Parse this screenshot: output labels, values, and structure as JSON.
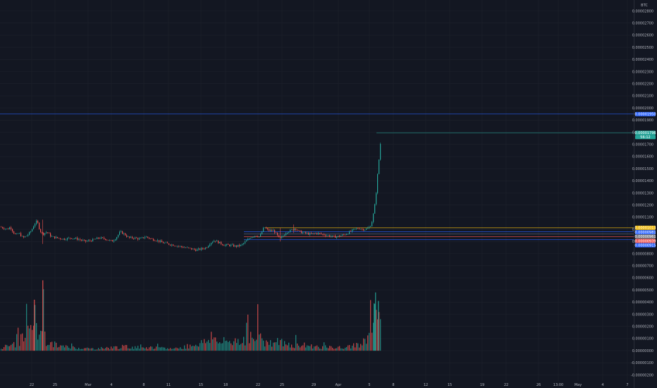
{
  "quote_currency": "BTC",
  "chart_data": {
    "type": "candlestick",
    "quote": "BTC",
    "y_ticks": [
      "0.00002800",
      "0.00002700",
      "0.00002600",
      "0.00002500",
      "0.00002400",
      "0.00002300",
      "0.00002200",
      "0.00002100",
      "0.00002000",
      "0.00001900",
      "0.00001800",
      "0.00001700",
      "0.00001600",
      "0.00001500",
      "0.00001400",
      "0.00001300",
      "0.00001200",
      "0.00001100",
      "0.00001000",
      "0.00000900",
      "0.00000800",
      "0.00000700",
      "0.00000600",
      "0.00000500",
      "0.00000400",
      "0.00000300",
      "0.00000200",
      "0.00000100",
      "0.00000000",
      "-0.00000100",
      "-0.00000200"
    ],
    "x_ticks": [
      "22",
      "25",
      "Mar",
      "4",
      "8",
      "11",
      "15",
      "18",
      "22",
      "25",
      "29",
      "Apr",
      "5",
      "8",
      "12",
      "15",
      "19",
      "22",
      "26",
      "13:00",
      "May",
      "4",
      "7"
    ],
    "price_ylim": [
      8e-06,
      2.8e-05
    ],
    "price_path": [
      [
        0,
        1.02e-05
      ],
      [
        5,
        1.01e-05
      ],
      [
        10,
        1e-05
      ],
      [
        14,
        1.02e-05
      ],
      [
        18,
        9.8e-06
      ],
      [
        22,
        9.5e-06
      ],
      [
        26,
        9.7e-06
      ],
      [
        32,
        9.3e-06
      ],
      [
        38,
        9.5e-06
      ],
      [
        44,
        9.9e-06
      ],
      [
        48,
        1.04e-05
      ],
      [
        52,
        1.07e-05
      ],
      [
        56,
        9.9e-06
      ],
      [
        60,
        9.6e-06
      ],
      [
        66,
        9.8e-06
      ],
      [
        72,
        9.4e-06
      ],
      [
        80,
        9.3e-06
      ],
      [
        90,
        9.2e-06
      ],
      [
        100,
        9.3e-06
      ],
      [
        110,
        9.2e-06
      ],
      [
        120,
        9e-06
      ],
      [
        130,
        9.1e-06
      ],
      [
        140,
        9.3e-06
      ],
      [
        150,
        9.2e-06
      ],
      [
        158,
        9e-06
      ],
      [
        164,
        9.3e-06
      ],
      [
        170,
        9.8e-06
      ],
      [
        176,
        9.6e-06
      ],
      [
        182,
        9.3e-06
      ],
      [
        190,
        9.3e-06
      ],
      [
        198,
        9.2e-06
      ],
      [
        206,
        9.4e-06
      ],
      [
        214,
        9.2e-06
      ],
      [
        222,
        9.1e-06
      ],
      [
        230,
        8.9e-06
      ],
      [
        238,
        8.8e-06
      ],
      [
        246,
        8.7e-06
      ],
      [
        254,
        8.6e-06
      ],
      [
        262,
        8.5e-06
      ],
      [
        270,
        8.4e-06
      ],
      [
        278,
        8.3e-06
      ],
      [
        286,
        8.4e-06
      ],
      [
        292,
        8.5e-06
      ],
      [
        298,
        8.9e-06
      ],
      [
        304,
        9.1e-06
      ],
      [
        310,
        8.9e-06
      ],
      [
        318,
        8.7e-06
      ],
      [
        326,
        8.7e-06
      ],
      [
        334,
        8.6e-06
      ],
      [
        342,
        8.7e-06
      ],
      [
        350,
        9.1e-06
      ],
      [
        356,
        9.4e-06
      ],
      [
        362,
        9.5e-06
      ],
      [
        368,
        9.4e-06
      ],
      [
        374,
        1.02e-05
      ],
      [
        380,
        9.9e-06
      ],
      [
        388,
        9.9e-06
      ],
      [
        396,
        9.2e-06
      ],
      [
        400,
        9.4e-06
      ],
      [
        406,
        9.8e-06
      ],
      [
        412,
        9.9e-06
      ],
      [
        418,
        1.01e-05
      ],
      [
        424,
        9.8e-06
      ],
      [
        432,
        9.7e-06
      ],
      [
        440,
        9.6e-06
      ],
      [
        448,
        9.7e-06
      ],
      [
        456,
        9.6e-06
      ],
      [
        464,
        9.5e-06
      ],
      [
        472,
        9.4e-06
      ],
      [
        478,
        9.4e-06
      ],
      [
        484,
        9.5e-06
      ],
      [
        490,
        9.6e-06
      ],
      [
        496,
        9.8e-06
      ],
      [
        502,
        1e-05
      ],
      [
        508,
        1.01e-05
      ],
      [
        514,
        1e-05
      ],
      [
        518,
        1e-05
      ],
      [
        522,
        1.01e-05
      ],
      [
        526,
        1.04e-05
      ],
      [
        528,
        1.09e-05
      ],
      [
        530,
        1.16e-05
      ],
      [
        532,
        1.24e-05
      ],
      [
        534,
        1.37e-05
      ],
      [
        536,
        1.53e-05
      ],
      [
        538,
        1.62e-05
      ],
      [
        540,
        1.79e-05
      ]
    ],
    "volume_ylim": [
      -2e-06,
      6e-06
    ],
    "volume_peaks": [
      [
        0,
        3e-07
      ],
      [
        20,
        6e-07
      ],
      [
        36,
        1.5e-06
      ],
      [
        44,
        2.1e-06
      ],
      [
        48,
        4e-06
      ],
      [
        50,
        2.4e-06
      ],
      [
        56,
        1.4e-06
      ],
      [
        60,
        5.5e-06
      ],
      [
        64,
        9e-07
      ],
      [
        72,
        7e-07
      ],
      [
        90,
        4e-07
      ],
      [
        130,
        2e-07
      ],
      [
        176,
        4e-07
      ],
      [
        210,
        3e-07
      ],
      [
        250,
        2e-07
      ],
      [
        296,
        1e-06
      ],
      [
        300,
        2.2e-06
      ],
      [
        306,
        8e-07
      ],
      [
        350,
        1.2e-06
      ],
      [
        354,
        1.4e-06
      ],
      [
        360,
        9e-07
      ],
      [
        370,
        1.9e-06
      ],
      [
        372,
        1.5e-06
      ],
      [
        376,
        8e-07
      ],
      [
        398,
        9e-07
      ],
      [
        408,
        5e-07
      ],
      [
        426,
        6e-07
      ],
      [
        450,
        4e-07
      ],
      [
        476,
        3e-07
      ],
      [
        500,
        4e-07
      ],
      [
        524,
        1.3e-06
      ],
      [
        526,
        1.9e-06
      ],
      [
        528,
        3e-06
      ],
      [
        530,
        3.6e-06
      ],
      [
        532,
        4.6e-06
      ],
      [
        534,
        3.8e-06
      ],
      [
        536,
        4e-06
      ],
      [
        540,
        2.2e-06
      ]
    ],
    "levels": [
      {
        "value": "0.00001950",
        "color": "#2962ff"
      },
      {
        "value": "0.00001796",
        "color": "#26a69a"
      },
      {
        "value": "0.00001013",
        "color": "#f0b90b"
      },
      {
        "value": "0.00000981",
        "color": "#2962ff"
      },
      {
        "value": "0.00000961",
        "color": "#787b86"
      },
      {
        "value": "0.00000939",
        "color": "#ef5350"
      },
      {
        "value": "0.00000915",
        "color": "#2962ff"
      }
    ],
    "last_price": {
      "value": "0.00001796",
      "countdown": "56:12"
    },
    "colors": {
      "up": "#26a69a",
      "down": "#ef5350",
      "background": "#131722",
      "grid": "#1e222d"
    }
  }
}
